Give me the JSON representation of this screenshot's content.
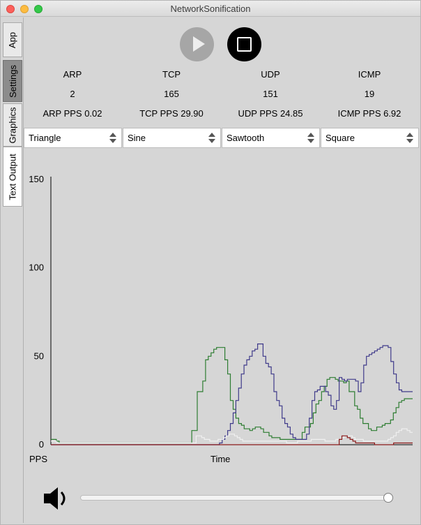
{
  "window": {
    "title": "NetworkSonification"
  },
  "tabs": [
    {
      "label": "App",
      "state": "normal"
    },
    {
      "label": "Settings",
      "state": "selected"
    },
    {
      "label": "Graphics",
      "state": "normal"
    },
    {
      "label": "Text Output",
      "state": "active"
    }
  ],
  "controls": {
    "play_icon": "play-icon",
    "stop_icon": "stop-icon"
  },
  "protocols": [
    {
      "name": "ARP",
      "count": "2",
      "pps": "ARP PPS 0.02",
      "waveform": "Triangle"
    },
    {
      "name": "TCP",
      "count": "165",
      "pps": "TCP PPS 29.90",
      "waveform": "Sine"
    },
    {
      "name": "UDP",
      "count": "151",
      "pps": "UDP PPS 24.85",
      "waveform": "Sawtooth"
    },
    {
      "name": "ICMP",
      "count": "19",
      "pps": "ICMP PPS 6.92",
      "waveform": "Square"
    }
  ],
  "chart_data": {
    "type": "line",
    "xlabel": "Time",
    "ylabel": "PPS",
    "ylim": [
      0,
      150
    ],
    "yticks": [
      "0",
      "50",
      "100",
      "150"
    ],
    "grid": false,
    "series": [
      {
        "color": "#2e7d32",
        "values": [
          3,
          3,
          2,
          1,
          1,
          1,
          1,
          1,
          1,
          1,
          1,
          1,
          1,
          1,
          1,
          1,
          1,
          1,
          1,
          1,
          1,
          1,
          1,
          1,
          1,
          1,
          1,
          1,
          1,
          1,
          1,
          1,
          1,
          1,
          1,
          1,
          1,
          1,
          1,
          1,
          1,
          1,
          1,
          1,
          1,
          1,
          1,
          1,
          1,
          1,
          1,
          8,
          8,
          30,
          30,
          36,
          48,
          50,
          52,
          54,
          55,
          55,
          55,
          48,
          40,
          25,
          20,
          15,
          12,
          11,
          9,
          9,
          8,
          9,
          10,
          10,
          9,
          7,
          7,
          5,
          4,
          4,
          4,
          3,
          3,
          3,
          3,
          3,
          3,
          3,
          3,
          7,
          10,
          10,
          12,
          18,
          23,
          25,
          30,
          33,
          37,
          38,
          38,
          37,
          36,
          36,
          35,
          36,
          30,
          30,
          22,
          20,
          15,
          12,
          12,
          9,
          8,
          8,
          10,
          10,
          11,
          12,
          12,
          14,
          18,
          21,
          24,
          25,
          26,
          26,
          26
        ]
      },
      {
        "color": "#3f3a8a",
        "values": [
          0,
          0,
          0,
          0,
          0,
          0,
          0,
          0,
          0,
          0,
          0,
          0,
          0,
          0,
          0,
          0,
          0,
          0,
          0,
          0,
          0,
          0,
          0,
          0,
          0,
          0,
          0,
          0,
          0,
          0,
          0,
          0,
          0,
          0,
          0,
          0,
          0,
          0,
          0,
          0,
          0,
          0,
          0,
          0,
          0,
          0,
          0,
          0,
          0,
          0,
          0,
          0,
          0,
          0,
          0,
          0,
          0,
          0,
          0,
          0,
          0,
          0,
          1,
          3,
          5,
          8,
          12,
          18,
          25,
          32,
          40,
          45,
          48,
          50,
          53,
          54,
          57,
          57,
          50,
          46,
          44,
          40,
          30,
          25,
          22,
          15,
          12,
          10,
          6,
          4,
          3,
          3,
          3,
          3,
          6,
          15,
          25,
          30,
          31,
          33,
          33,
          30,
          28,
          22,
          20,
          25,
          38,
          37,
          36,
          37,
          37,
          37,
          36,
          30,
          35,
          45,
          50,
          51,
          52,
          53,
          54,
          55,
          56,
          56,
          55,
          47,
          40,
          35,
          31,
          30,
          30,
          30,
          30
        ]
      },
      {
        "color": "#f0f0f0",
        "values": [
          2,
          2,
          1,
          1,
          1,
          1,
          1,
          1,
          1,
          1,
          1,
          1,
          1,
          1,
          1,
          1,
          1,
          1,
          1,
          1,
          1,
          1,
          1,
          1,
          1,
          1,
          1,
          1,
          1,
          1,
          1,
          1,
          1,
          1,
          1,
          1,
          1,
          1,
          1,
          1,
          1,
          1,
          1,
          1,
          1,
          1,
          1,
          1,
          1,
          1,
          1,
          1,
          1,
          5,
          5,
          4,
          3,
          3,
          2,
          2,
          2,
          3,
          3,
          4,
          5,
          6,
          6,
          5,
          4,
          3,
          2,
          2,
          2,
          2,
          2,
          2,
          2,
          2,
          2,
          2,
          2,
          2,
          2,
          2,
          2,
          2,
          1,
          1,
          1,
          1,
          2,
          2,
          2,
          2,
          2,
          3,
          3,
          3,
          3,
          3,
          2,
          2,
          2,
          2,
          3,
          3,
          4,
          5,
          5,
          5,
          4,
          3,
          3,
          3,
          2,
          2,
          2,
          2,
          2,
          2,
          2,
          2,
          2,
          3,
          4,
          5,
          7,
          8,
          9,
          9,
          8,
          7
        ]
      },
      {
        "color": "#8b1a1a",
        "values": [
          0,
          0,
          0,
          0,
          0,
          0,
          0,
          0,
          0,
          0,
          0,
          0,
          0,
          0,
          0,
          0,
          0,
          0,
          0,
          0,
          0,
          0,
          0,
          0,
          0,
          0,
          0,
          0,
          0,
          0,
          0,
          0,
          0,
          0,
          0,
          0,
          0,
          0,
          0,
          0,
          0,
          0,
          0,
          0,
          0,
          0,
          0,
          0,
          0,
          0,
          0,
          0,
          0,
          0,
          0,
          0,
          0,
          0,
          0,
          0,
          0,
          0,
          0,
          0,
          0,
          0,
          0,
          0,
          0,
          0,
          0,
          0,
          0,
          0,
          0,
          0,
          0,
          0,
          0,
          0,
          0,
          0,
          0,
          0,
          0,
          0,
          0,
          0,
          0,
          0,
          0,
          0,
          0,
          0,
          0,
          0,
          0,
          0,
          0,
          0,
          0,
          0,
          0,
          0,
          0,
          0,
          3,
          5,
          5,
          4,
          3,
          2,
          1,
          1,
          1,
          1,
          1,
          1,
          1,
          0,
          0,
          0,
          0,
          0,
          0,
          0,
          1,
          1,
          1,
          1,
          1,
          1,
          1
        ]
      }
    ]
  },
  "volume": {
    "icon": "speaker-icon",
    "level": 1.0
  }
}
